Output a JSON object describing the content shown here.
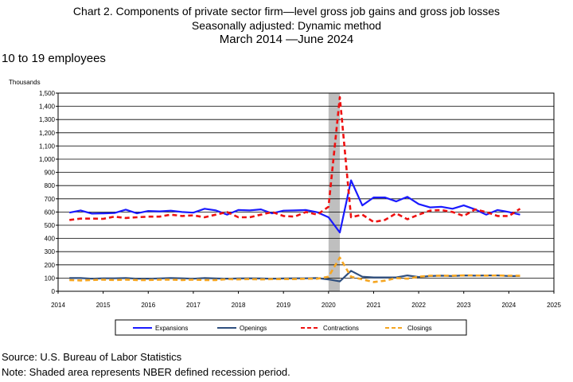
{
  "title": "Chart 2. Components of private sector firm—level gross job gains and gross job losses",
  "subtitle": "Seasonally adjusted: Dynamic method",
  "period": "March 2014  —June 2024",
  "panel_title": "10 to 19 employees",
  "source": "Source: U.S. Bureau of Labor Statistics",
  "note": "Note: Shaded area represents NBER defined recession period.",
  "chart_data": {
    "type": "line",
    "ylabel": "Thousands",
    "ylim": [
      0,
      1500
    ],
    "yticks": [
      0,
      100,
      200,
      300,
      400,
      500,
      600,
      700,
      800,
      900,
      1000,
      1100,
      1200,
      1300,
      1400,
      1500
    ],
    "ytick_labels": [
      "0",
      "100",
      "200",
      "300",
      "400",
      "500",
      "600",
      "700",
      "800",
      "900",
      "1,000",
      "1,100",
      "1,200",
      "1,300",
      "1,400",
      "1,500"
    ],
    "xlim": [
      2014,
      2025
    ],
    "xticks": [
      2014,
      2015,
      2016,
      2017,
      2018,
      2019,
      2020,
      2021,
      2022,
      2023,
      2024,
      2025
    ],
    "xtick_labels": [
      "2014",
      "2015",
      "2016",
      "2017",
      "2018",
      "2019",
      "2020",
      "2021",
      "2022",
      "2023",
      "2024",
      "2025"
    ],
    "grid": "horizontal",
    "recession": [
      2020.0,
      2020.25
    ],
    "legend_position": "bottom",
    "series": [
      {
        "name": "Expansions",
        "color": "#1a1aff",
        "style": "solid",
        "points": [
          [
            2014.25,
            595
          ],
          [
            2014.5,
            612
          ],
          [
            2014.75,
            588
          ],
          [
            2015.0,
            590
          ],
          [
            2015.25,
            592
          ],
          [
            2015.5,
            618
          ],
          [
            2015.75,
            590
          ],
          [
            2016.0,
            608
          ],
          [
            2016.25,
            605
          ],
          [
            2016.5,
            610
          ],
          [
            2016.75,
            600
          ],
          [
            2017.0,
            595
          ],
          [
            2017.25,
            625
          ],
          [
            2017.5,
            612
          ],
          [
            2017.75,
            580
          ],
          [
            2018.0,
            615
          ],
          [
            2018.25,
            612
          ],
          [
            2018.5,
            620
          ],
          [
            2018.75,
            590
          ],
          [
            2019.0,
            610
          ],
          [
            2019.25,
            612
          ],
          [
            2019.5,
            615
          ],
          [
            2019.75,
            598
          ],
          [
            2020.0,
            560
          ],
          [
            2020.25,
            445
          ],
          [
            2020.5,
            840
          ],
          [
            2020.75,
            650
          ],
          [
            2021.0,
            710
          ],
          [
            2021.25,
            710
          ],
          [
            2021.5,
            680
          ],
          [
            2021.75,
            715
          ],
          [
            2022.0,
            660
          ],
          [
            2022.25,
            635
          ],
          [
            2022.5,
            640
          ],
          [
            2022.75,
            625
          ],
          [
            2023.0,
            650
          ],
          [
            2023.25,
            620
          ],
          [
            2023.5,
            580
          ],
          [
            2023.75,
            615
          ],
          [
            2024.0,
            600
          ],
          [
            2024.25,
            580
          ]
        ]
      },
      {
        "name": "Openings",
        "color": "#2f4f7f",
        "style": "solid",
        "points": [
          [
            2014.25,
            100
          ],
          [
            2014.5,
            100
          ],
          [
            2014.75,
            95
          ],
          [
            2015.0,
            98
          ],
          [
            2015.25,
            98
          ],
          [
            2015.5,
            100
          ],
          [
            2015.75,
            95
          ],
          [
            2016.0,
            95
          ],
          [
            2016.25,
            97
          ],
          [
            2016.5,
            100
          ],
          [
            2016.75,
            98
          ],
          [
            2017.0,
            95
          ],
          [
            2017.25,
            100
          ],
          [
            2017.5,
            97
          ],
          [
            2017.75,
            95
          ],
          [
            2018.0,
            97
          ],
          [
            2018.25,
            98
          ],
          [
            2018.5,
            97
          ],
          [
            2018.75,
            95
          ],
          [
            2019.0,
            97
          ],
          [
            2019.25,
            98
          ],
          [
            2019.5,
            98
          ],
          [
            2019.75,
            100
          ],
          [
            2020.0,
            90
          ],
          [
            2020.25,
            75
          ],
          [
            2020.5,
            155
          ],
          [
            2020.75,
            110
          ],
          [
            2021.0,
            105
          ],
          [
            2021.25,
            105
          ],
          [
            2021.5,
            105
          ],
          [
            2021.75,
            120
          ],
          [
            2022.0,
            108
          ],
          [
            2022.25,
            115
          ],
          [
            2022.5,
            118
          ],
          [
            2022.75,
            115
          ],
          [
            2023.0,
            120
          ],
          [
            2023.25,
            118
          ],
          [
            2023.5,
            120
          ],
          [
            2023.75,
            120
          ],
          [
            2024.0,
            115
          ],
          [
            2024.25,
            115
          ]
        ]
      },
      {
        "name": "Contractions",
        "color": "#ee1111",
        "style": "dashed",
        "points": [
          [
            2014.25,
            540
          ],
          [
            2014.5,
            550
          ],
          [
            2014.75,
            550
          ],
          [
            2015.0,
            548
          ],
          [
            2015.25,
            565
          ],
          [
            2015.5,
            555
          ],
          [
            2015.75,
            560
          ],
          [
            2016.0,
            565
          ],
          [
            2016.25,
            565
          ],
          [
            2016.5,
            580
          ],
          [
            2016.75,
            570
          ],
          [
            2017.0,
            575
          ],
          [
            2017.25,
            560
          ],
          [
            2017.5,
            580
          ],
          [
            2017.75,
            600
          ],
          [
            2018.0,
            560
          ],
          [
            2018.25,
            560
          ],
          [
            2018.5,
            580
          ],
          [
            2018.75,
            600
          ],
          [
            2019.0,
            570
          ],
          [
            2019.25,
            565
          ],
          [
            2019.5,
            600
          ],
          [
            2019.75,
            580
          ],
          [
            2020.0,
            640
          ],
          [
            2020.25,
            1470
          ],
          [
            2020.5,
            560
          ],
          [
            2020.75,
            580
          ],
          [
            2021.0,
            525
          ],
          [
            2021.25,
            540
          ],
          [
            2021.5,
            590
          ],
          [
            2021.75,
            545
          ],
          [
            2022.0,
            580
          ],
          [
            2022.25,
            610
          ],
          [
            2022.5,
            615
          ],
          [
            2022.75,
            600
          ],
          [
            2023.0,
            570
          ],
          [
            2023.25,
            620
          ],
          [
            2023.5,
            600
          ],
          [
            2023.75,
            570
          ],
          [
            2024.0,
            570
          ],
          [
            2024.25,
            625
          ]
        ]
      },
      {
        "name": "Closings",
        "color": "#f5a623",
        "style": "dashed",
        "points": [
          [
            2014.25,
            85
          ],
          [
            2014.5,
            82
          ],
          [
            2014.75,
            85
          ],
          [
            2015.0,
            88
          ],
          [
            2015.25,
            85
          ],
          [
            2015.5,
            88
          ],
          [
            2015.75,
            85
          ],
          [
            2016.0,
            85
          ],
          [
            2016.25,
            88
          ],
          [
            2016.5,
            88
          ],
          [
            2016.75,
            85
          ],
          [
            2017.0,
            88
          ],
          [
            2017.25,
            85
          ],
          [
            2017.5,
            85
          ],
          [
            2017.75,
            92
          ],
          [
            2018.0,
            90
          ],
          [
            2018.25,
            92
          ],
          [
            2018.5,
            90
          ],
          [
            2018.75,
            92
          ],
          [
            2019.0,
            92
          ],
          [
            2019.25,
            92
          ],
          [
            2019.5,
            95
          ],
          [
            2019.75,
            95
          ],
          [
            2020.0,
            110
          ],
          [
            2020.25,
            255
          ],
          [
            2020.5,
            110
          ],
          [
            2020.75,
            90
          ],
          [
            2021.0,
            70
          ],
          [
            2021.25,
            80
          ],
          [
            2021.5,
            100
          ],
          [
            2021.75,
            95
          ],
          [
            2022.0,
            110
          ],
          [
            2022.25,
            118
          ],
          [
            2022.5,
            118
          ],
          [
            2022.75,
            118
          ],
          [
            2023.0,
            120
          ],
          [
            2023.25,
            120
          ],
          [
            2023.5,
            118
          ],
          [
            2023.75,
            120
          ],
          [
            2024.0,
            118
          ],
          [
            2024.25,
            118
          ]
        ]
      }
    ]
  }
}
